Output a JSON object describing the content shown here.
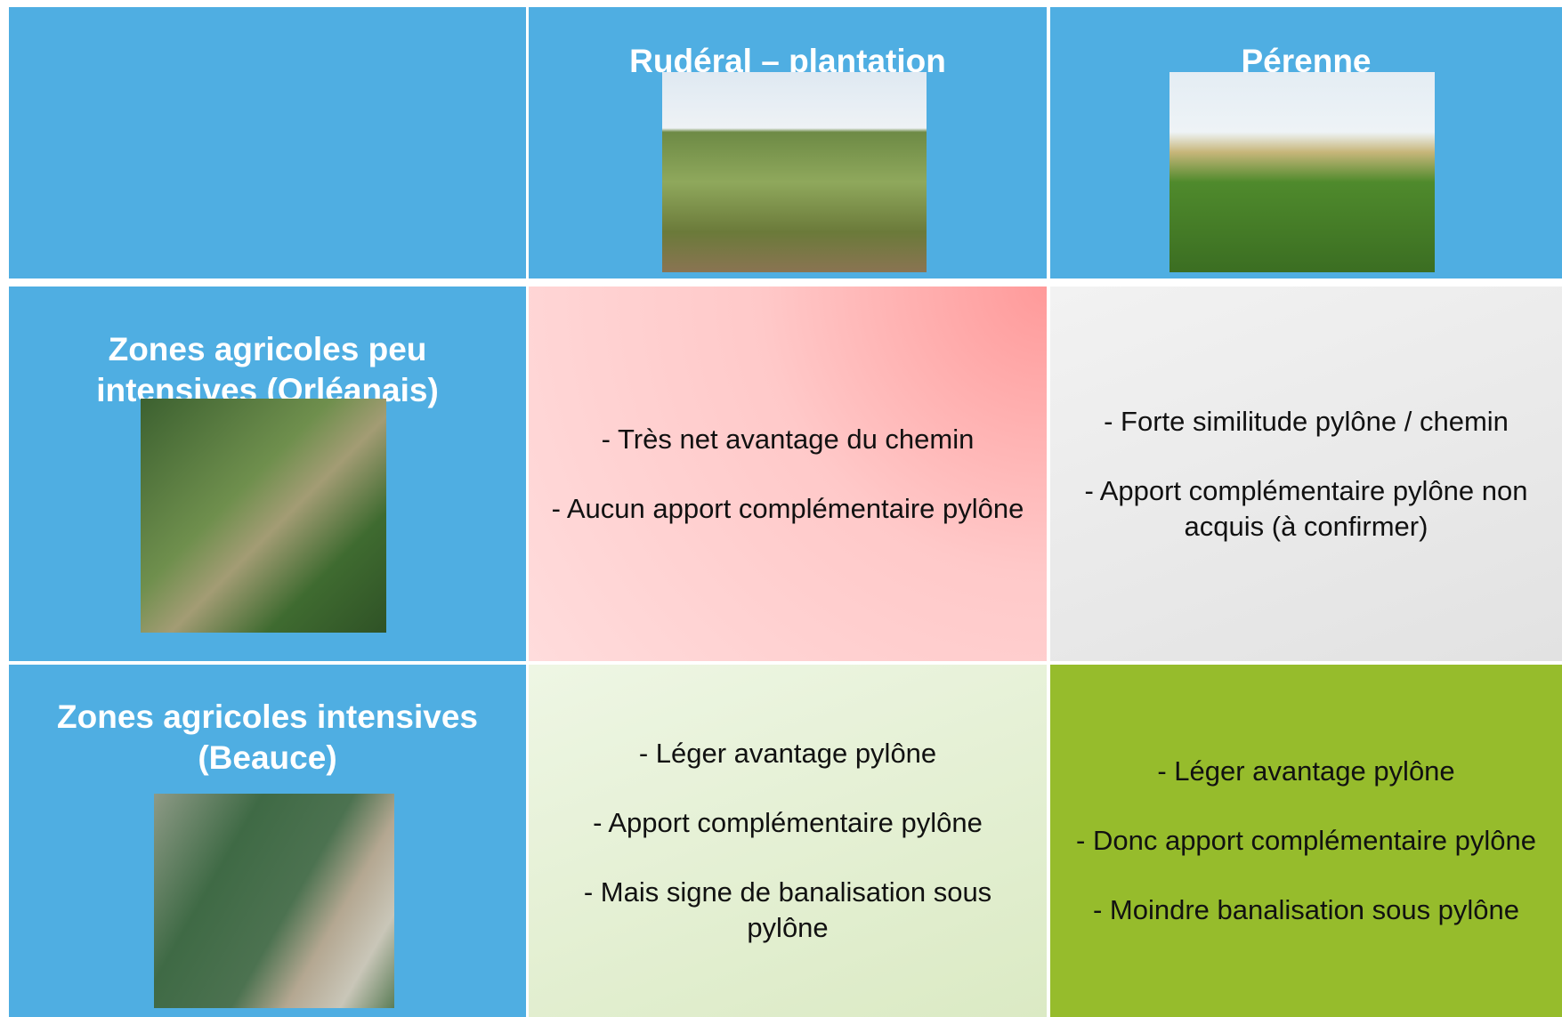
{
  "table": {
    "columns": [
      "Rudéral – plantation",
      "Pérenne"
    ],
    "rows": [
      {
        "label": "Zones agricoles peu intensives (Orléanais)",
        "cells": [
          [
            "- Très net avantage du chemin",
            "- Aucun apport complémentaire pylône"
          ],
          [
            "- Forte similitude pylône / chemin",
            "- Apport complémentaire pylône non acquis (à confirmer)"
          ]
        ]
      },
      {
        "label": "Zones agricoles intensives (Beauce)",
        "cells": [
          [
            "- Léger avantage pylône",
            "- Apport complémentaire pylône",
            "- Mais signe de banalisation sous pylône"
          ],
          [
            "- Léger avantage pylône",
            "- Donc apport complémentaire pylône",
            "- Moindre banalisation sous pylône"
          ]
        ]
      }
    ]
  }
}
